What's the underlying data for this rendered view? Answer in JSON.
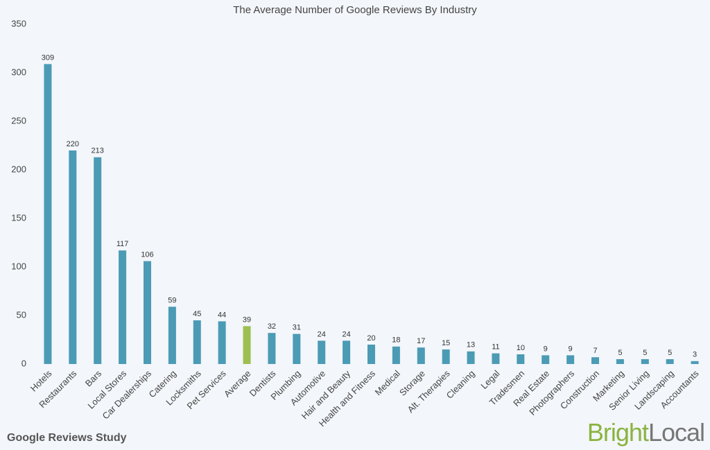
{
  "chart_data": {
    "type": "bar",
    "title": "The Average Number of Google Reviews By Industry",
    "categories": [
      "Hotels",
      "Restaurants",
      "Bars",
      "Local Stores",
      "Car Dealerships",
      "Catering",
      "Locksmiths",
      "Pet Services",
      "Average",
      "Dentists",
      "Plumbing",
      "Automotive",
      "Hair and Beauty",
      "Health and Fitness",
      "Medical",
      "Storage",
      "Alt. Therapies",
      "Cleaning",
      "Legal",
      "Tradesmen",
      "Real Estate",
      "Photographers",
      "Construction",
      "Marketing",
      "Senior Living",
      "Landscaping",
      "Accountants"
    ],
    "values": [
      309,
      220,
      213,
      117,
      106,
      59,
      45,
      44,
      39,
      32,
      31,
      24,
      24,
      20,
      18,
      17,
      15,
      13,
      11,
      10,
      9,
      9,
      7,
      5,
      5,
      5,
      3
    ],
    "colors": [
      "#4b9bb5",
      "#4b9bb5",
      "#4b9bb5",
      "#4b9bb5",
      "#4b9bb5",
      "#4b9bb5",
      "#4b9bb5",
      "#4b9bb5",
      "#9dbf52",
      "#4b9bb5",
      "#4b9bb5",
      "#4b9bb5",
      "#4b9bb5",
      "#4b9bb5",
      "#4b9bb5",
      "#4b9bb5",
      "#4b9bb5",
      "#4b9bb5",
      "#4b9bb5",
      "#4b9bb5",
      "#4b9bb5",
      "#4b9bb5",
      "#4b9bb5",
      "#4b9bb5",
      "#4b9bb5",
      "#4b9bb5",
      "#4b9bb5"
    ],
    "ylim": [
      0,
      350
    ],
    "yticks": [
      0,
      50,
      100,
      150,
      200,
      250,
      300,
      350
    ],
    "grid": false
  },
  "footer": {
    "study": "Google Reviews Study",
    "logo_bright": "Bright",
    "logo_local": "Local"
  }
}
